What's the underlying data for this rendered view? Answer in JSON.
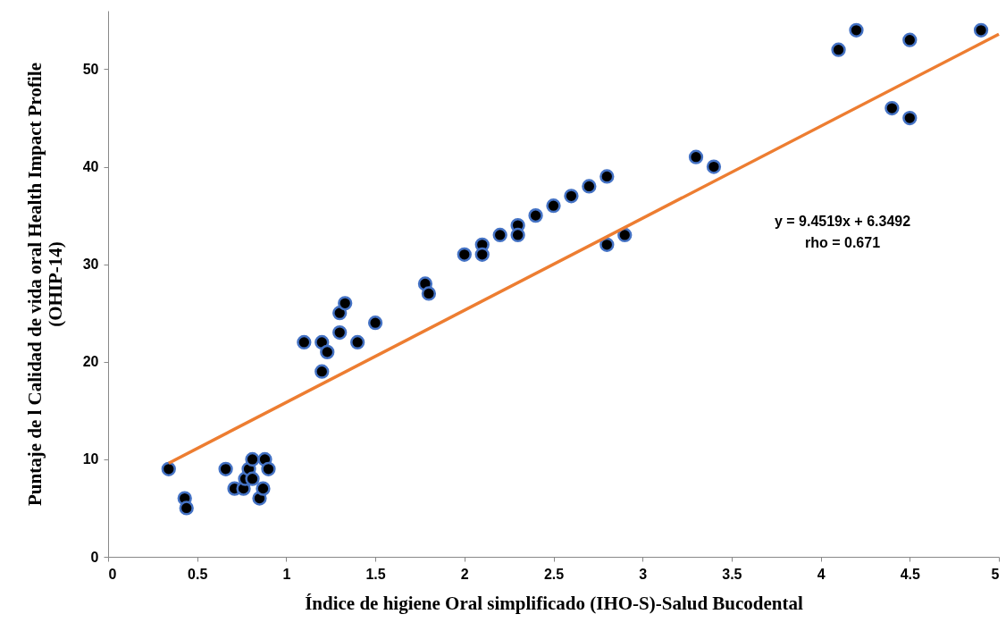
{
  "chart_data": {
    "type": "scatter",
    "xlabel": "Índice de higiene Oral simplificado (IHO-S)-Salud Bucodental",
    "ylabel": "Puntaje de l Calidad de vida oral Health Impact Profile\n(OHIP-14)",
    "series": [
      {
        "color": "#000000",
        "marker": "circle",
        "x": [
          0.34,
          0.43,
          0.44,
          0.66,
          0.71,
          0.76,
          0.77,
          0.79,
          0.81,
          0.81,
          0.85,
          0.87,
          0.88,
          0.9,
          1.1,
          1.2,
          1.2,
          1.23,
          1.3,
          1.3,
          1.33,
          1.4,
          1.5,
          1.78,
          1.8,
          2.0,
          2.1,
          2.1,
          2.2,
          2.3,
          2.3,
          2.4,
          2.5,
          2.6,
          2.7,
          2.8,
          2.8,
          2.9,
          3.3,
          3.4,
          4.1,
          4.2,
          4.4,
          4.5,
          4.5,
          4.9
        ],
        "values": [
          9,
          6,
          5,
          9,
          7,
          7,
          8,
          9,
          10,
          8,
          6,
          7,
          10,
          9,
          22,
          22,
          19,
          21,
          25,
          23,
          26,
          22,
          24,
          28,
          27,
          31,
          32,
          31,
          33,
          34,
          33,
          35,
          36,
          37,
          38,
          39,
          32,
          33,
          41,
          40,
          52,
          54,
          46,
          53,
          45,
          54
        ]
      },
      {
        "type": "line",
        "color": "#ed7d31",
        "x": [
          0.34,
          5
        ],
        "values": [
          9.6,
          53.6
        ]
      }
    ],
    "annotations": [
      "y = 9.4519x + 6.3492\nrho = 0.671"
    ],
    "xlim": [
      0,
      5
    ],
    "xticks": [
      0,
      0.5,
      1,
      1.5,
      2,
      2.5,
      3,
      3.5,
      4,
      4.5,
      5
    ],
    "ylim": [
      0,
      56
    ],
    "yticks": [
      0,
      10,
      20,
      30,
      40,
      50
    ],
    "grid": false
  }
}
